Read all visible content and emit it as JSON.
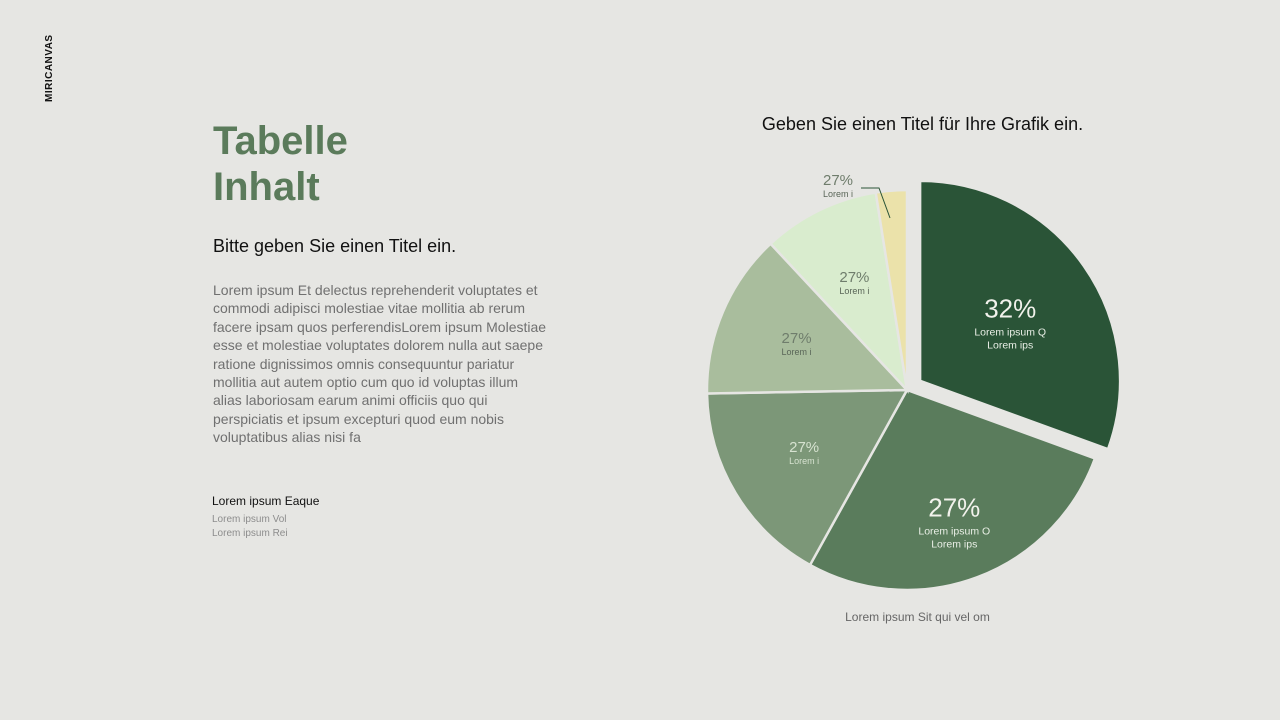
{
  "brand": "MIRICANVAS",
  "heading": {
    "line1": "Tabelle",
    "line2": "Inhalt"
  },
  "subtitle": "Bitte geben Sie einen Titel ein.",
  "body": "Lorem ipsum Et delectus reprehenderit voluptates et commodi adipisci molestiae vitae mollitia ab rerum facere ipsam quos perferendisLorem ipsum Molestiae esse et molestiae voluptates dolorem nulla aut saepe ratione dignissimos omnis consequuntur pariatur mollitia aut autem optio cum quo id voluptas illum alias laboriosam earum animi officiis quo qui perspiciatis et ipsum excepturi quod eum nobis voluptatibus alias nisi fa",
  "footer": {
    "title": "Lorem ipsum Eaque",
    "lines": [
      "Lorem ipsum Vol",
      "Lorem ipsum Rei"
    ]
  },
  "chart_caption": "Lorem ipsum Sit qui vel om",
  "colors": {
    "accent": "#5b7b5b",
    "slice_dark": "#2a5437",
    "slice_mid": "#5a7c5c",
    "slice_mid_light": "#7c9778",
    "slice_sage": "#a9bd9d",
    "slice_pale": "#d9ecce",
    "slice_yellow": "#ebe2aa"
  },
  "chart_data": {
    "type": "pie",
    "title": "Geben Sie einen Titel für Ihre Grafik ein.",
    "slices": [
      {
        "value": 32,
        "label": "32%",
        "name": "Lorem ipsum Q\nLorem ips",
        "color": "#2a5437",
        "exploded": true
      },
      {
        "value": 27,
        "label": "27%",
        "name": "Lorem ipsum O\nLorem ips",
        "color": "#5a7c5c"
      },
      {
        "value": 27,
        "label": "27%",
        "name": "Lorem i",
        "color": "#7c9778"
      },
      {
        "value": 27,
        "label": "27%",
        "name": "Lorem i",
        "color": "#a9bd9d"
      },
      {
        "value": 27,
        "label": "27%",
        "name": "Lorem i",
        "color": "#d9ecce"
      },
      {
        "value": 27,
        "label": "27%",
        "name": "Lorem i",
        "color": "#ebe2aa",
        "callout": true
      }
    ]
  }
}
